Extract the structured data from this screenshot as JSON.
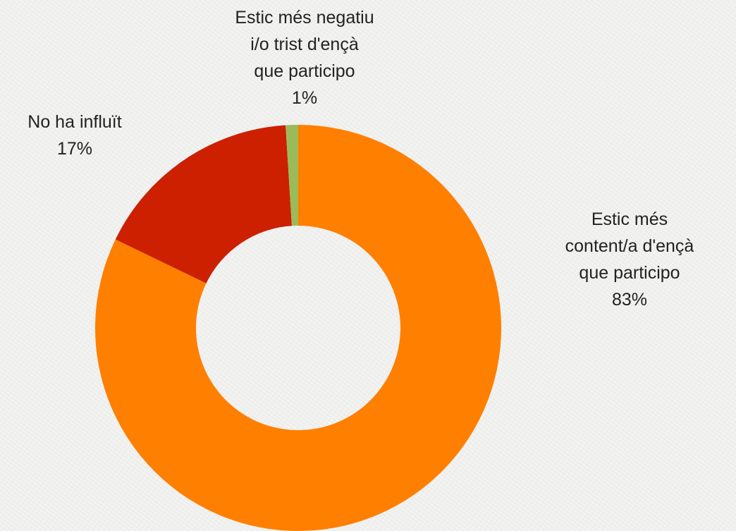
{
  "chart_data": {
    "type": "donut",
    "categories": [
      "Estic més\ncontent/a d'ençà\nque participo",
      "No ha influït",
      "Estic més negatiu\ni/o trist d'ençà\nque participo"
    ],
    "values": [
      83,
      17,
      1
    ],
    "value_labels": [
      "83%",
      "17%",
      "1%"
    ],
    "colors": [
      "#ff7f00",
      "#cc2000",
      "#9bbb59"
    ]
  }
}
